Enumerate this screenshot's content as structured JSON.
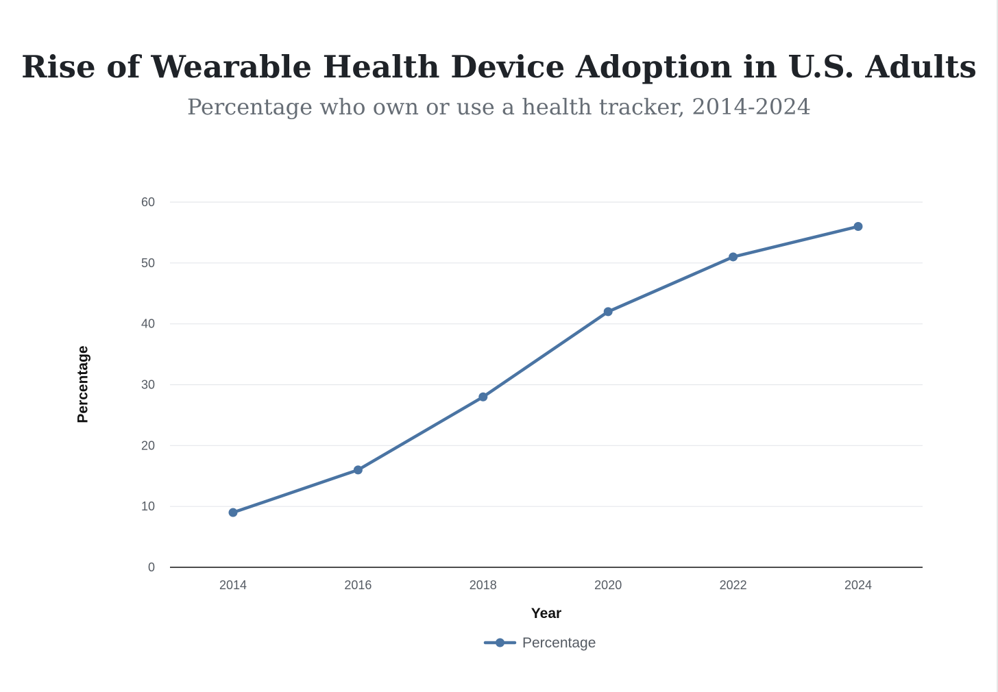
{
  "colors": {
    "series": "#4a74a3",
    "grid": "#e5e7eb",
    "axis": "#111111",
    "title": "#1f2328",
    "subtitle": "#666d75",
    "tick_text": "#555b63"
  },
  "chart_data": {
    "type": "line",
    "title": "Rise of Wearable Health Device Adoption in U.S. Adults",
    "subtitle": "Percentage who own or use a health tracker, 2014-2024",
    "xlabel": "Year",
    "ylabel": "Percentage",
    "categories": [
      "2014",
      "2016",
      "2018",
      "2020",
      "2022",
      "2024"
    ],
    "series": [
      {
        "name": "Percentage",
        "values": [
          9,
          16,
          28,
          42,
          51,
          56
        ]
      }
    ],
    "ylim": [
      0,
      60
    ],
    "yticks": [
      0,
      10,
      20,
      30,
      40,
      50,
      60
    ],
    "grid": true,
    "legend_position": "bottom-center"
  }
}
